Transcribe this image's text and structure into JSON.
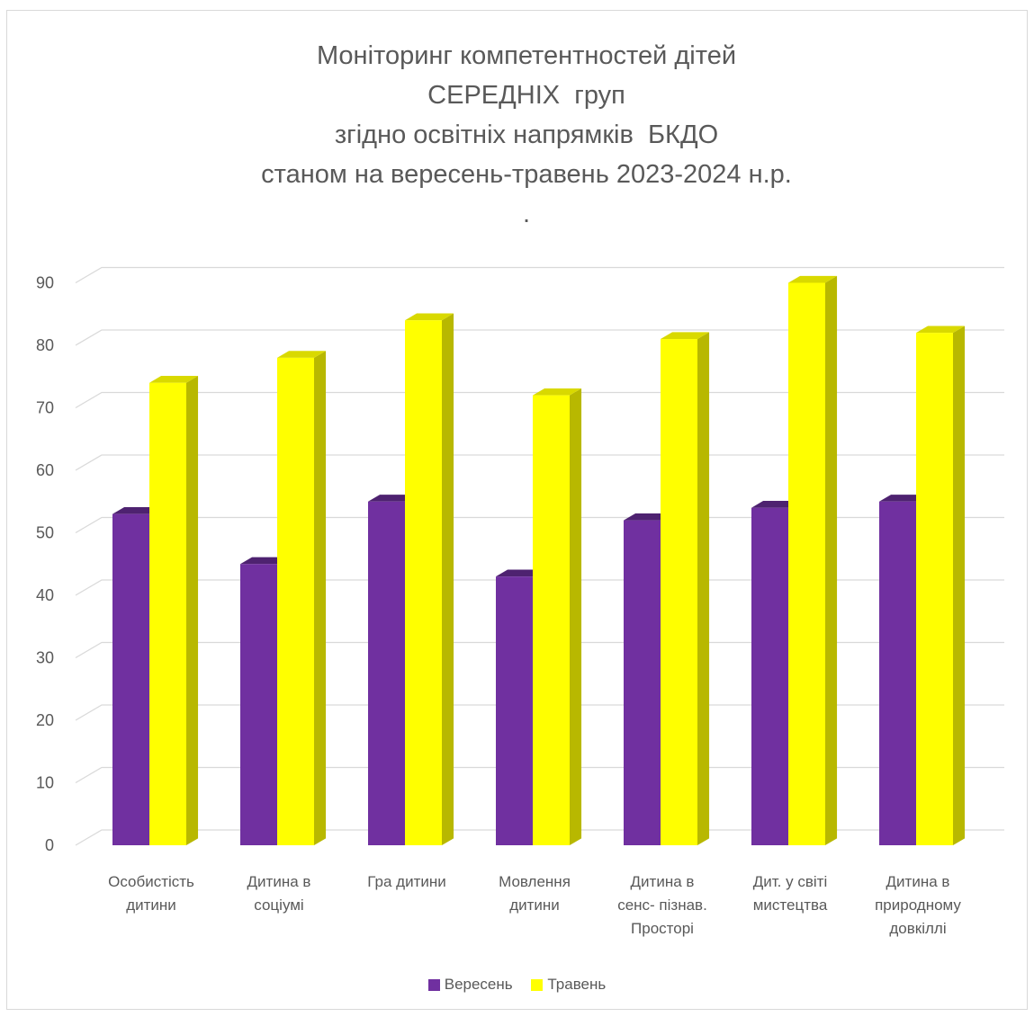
{
  "chart_data": {
    "type": "bar",
    "title_lines": [
      "Моніторинг компетентностей дітей",
      "СЕРЕДНІХ  груп",
      "згідно освітніх напрямків  БКДО",
      "станом на вересень-травень 2023-2024 н.р.",
      "."
    ],
    "categories": [
      [
        "Особистість",
        "дитини"
      ],
      [
        "Дитина в",
        "соціумі"
      ],
      [
        "Гра дитини"
      ],
      [
        "Мовлення",
        "дитини"
      ],
      [
        "Дитина в",
        "сенс- пізнав.",
        "Просторі"
      ],
      [
        "Дит. у світі",
        "мистецтва"
      ],
      [
        "Дитина в",
        "природному",
        "довкіллі"
      ]
    ],
    "series": [
      {
        "name": "Вересень",
        "color": "#7030A0",
        "values": [
          53,
          45,
          55,
          43,
          52,
          54,
          55
        ]
      },
      {
        "name": "Травень",
        "color": "#FFFF00",
        "values": [
          74,
          78,
          84,
          72,
          81,
          90,
          82
        ]
      }
    ],
    "yticks": [
      0,
      10,
      20,
      30,
      40,
      50,
      60,
      70,
      80,
      90
    ],
    "ylim": [
      0,
      90
    ],
    "grid": true,
    "legend": "bottom"
  }
}
